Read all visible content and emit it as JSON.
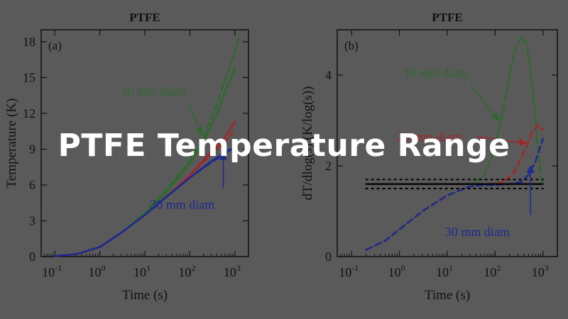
{
  "overlay": {
    "title": "PTFE Temperature Range"
  },
  "colors": {
    "background": "#5a5a5a",
    "axis": "#111111",
    "green": "#2e6a2e",
    "red": "#a02828",
    "blue": "#1e2a8c",
    "black": "#000000"
  },
  "chart_data": [
    {
      "type": "line",
      "panel_label": "(a)",
      "title": "PTFE",
      "xlabel": "Time (s)",
      "ylabel": "Temperature (K)",
      "xscale": "log",
      "xlim": [
        0.05,
        2000
      ],
      "ylim": [
        0,
        19
      ],
      "xticks": [
        0.1,
        1,
        10,
        100,
        1000
      ],
      "xtick_labels": [
        "10-1",
        "100",
        "101",
        "102",
        "103"
      ],
      "yticks": [
        0,
        3,
        6,
        9,
        12,
        15,
        18
      ],
      "ytick_labels": [
        "0",
        "3",
        "6",
        "9",
        "12",
        "15",
        "18"
      ],
      "series": [
        {
          "name": "10 mm diam",
          "color": "green",
          "style": "solid",
          "x": [
            0.1,
            0.3,
            1,
            3,
            10,
            30,
            100,
            200,
            400,
            700,
            1000
          ],
          "y": [
            0.05,
            0.2,
            0.8,
            2.0,
            3.6,
            5.4,
            7.8,
            9.6,
            12.0,
            14.4,
            15.8
          ]
        },
        {
          "name": "",
          "color": "green",
          "style": "dashed",
          "x": [
            0.1,
            0.3,
            1,
            3,
            10,
            30,
            100,
            200,
            400,
            700,
            1000,
            1300
          ],
          "y": [
            0.05,
            0.2,
            0.8,
            2.0,
            3.7,
            5.6,
            8.0,
            10.0,
            12.8,
            15.5,
            17.2,
            18.6
          ]
        },
        {
          "name": "",
          "color": "red",
          "style": "solid",
          "x": [
            0.1,
            0.3,
            1,
            3,
            10,
            30,
            100,
            300,
            600,
            1000
          ],
          "y": [
            0.05,
            0.2,
            0.8,
            2.0,
            3.5,
            5.0,
            6.8,
            8.8,
            10.0,
            11.3
          ]
        },
        {
          "name": "",
          "color": "red",
          "style": "dashed",
          "x": [
            0.1,
            0.3,
            1,
            3,
            10,
            30,
            100,
            300,
            600,
            900
          ],
          "y": [
            0.05,
            0.2,
            0.8,
            2.0,
            3.5,
            5.0,
            6.8,
            8.6,
            9.6,
            10.4
          ]
        },
        {
          "name": "30 mm diam",
          "color": "blue",
          "style": "solid",
          "x": [
            0.1,
            0.3,
            1,
            3,
            10,
            30,
            100,
            300,
            600,
            800
          ],
          "y": [
            0.05,
            0.2,
            0.8,
            2.0,
            3.5,
            5.0,
            6.6,
            8.0,
            8.7,
            9.0
          ]
        },
        {
          "name": "",
          "color": "blue",
          "style": "dashed",
          "x": [
            0.1,
            0.3,
            1,
            3,
            10,
            30,
            100,
            300,
            600,
            800
          ],
          "y": [
            0.05,
            0.2,
            0.8,
            2.0,
            3.5,
            5.0,
            6.6,
            7.9,
            8.6,
            8.9
          ]
        }
      ],
      "annotations": [
        {
          "text": "10 mm diam",
          "color": "green",
          "text_at": [
            3,
            13.5
          ],
          "arrow_to": [
            180,
            10.2
          ]
        },
        {
          "text": "30 mm diam",
          "color": "blue",
          "text_at": [
            13,
            4.0
          ],
          "arrow_to": [
            550,
            8.7
          ]
        }
      ]
    },
    {
      "type": "line",
      "panel_label": "(b)",
      "title": "PTFE",
      "xlabel": "Time (s)",
      "ylabel": "dT/dlog(s) (K/log(s))",
      "xscale": "log",
      "xlim": [
        0.05,
        2000
      ],
      "ylim": [
        0,
        5
      ],
      "xticks": [
        0.1,
        1,
        10,
        100,
        1000
      ],
      "xtick_labels": [
        "10-1",
        "100",
        "101",
        "102",
        "103"
      ],
      "yticks": [
        0,
        2,
        4
      ],
      "ytick_labels": [
        "0",
        "2",
        "4"
      ],
      "series": [
        {
          "name": "10 mm diam",
          "color": "green",
          "style": "dashed",
          "x": [
            0.2,
            0.5,
            1,
            3,
            10,
            30,
            60,
            100,
            150,
            250,
            350,
            450,
            600,
            750,
            900,
            1000
          ],
          "y": [
            0.15,
            0.35,
            0.6,
            1.0,
            1.35,
            1.55,
            1.8,
            2.4,
            3.3,
            4.5,
            4.85,
            4.7,
            3.8,
            2.6,
            1.8,
            1.6
          ]
        },
        {
          "name": "20 mm diam",
          "color": "red",
          "style": "dashed",
          "x": [
            0.2,
            0.5,
            1,
            3,
            10,
            30,
            60,
            100,
            150,
            250,
            400,
            600,
            800,
            1000
          ],
          "y": [
            0.15,
            0.35,
            0.6,
            1.0,
            1.35,
            1.55,
            1.6,
            1.6,
            1.65,
            1.85,
            2.3,
            2.75,
            2.9,
            2.8
          ]
        },
        {
          "name": "30 mm diam",
          "color": "blue",
          "style": "dashed",
          "x": [
            0.2,
            0.5,
            1,
            3,
            10,
            30,
            60,
            100,
            200,
            350,
            500,
            700,
            900,
            1000
          ],
          "y": [
            0.15,
            0.35,
            0.6,
            1.0,
            1.35,
            1.55,
            1.58,
            1.58,
            1.6,
            1.65,
            1.8,
            2.1,
            2.45,
            2.6
          ]
        },
        {
          "name": "",
          "color": "black",
          "style": "solid",
          "x": [
            0.2,
            1000
          ],
          "y": [
            1.6,
            1.6
          ]
        },
        {
          "name": "",
          "color": "black",
          "style": "dotted",
          "x": [
            0.2,
            1000
          ],
          "y": [
            1.7,
            1.7
          ]
        },
        {
          "name": "",
          "color": "black",
          "style": "dotted",
          "x": [
            0.2,
            1000
          ],
          "y": [
            1.5,
            1.5
          ]
        }
      ],
      "annotations": [
        {
          "text": "10 mm diam",
          "color": "green",
          "text_at": [
            1.2,
            3.95
          ],
          "arrow_to": [
            120,
            3.0
          ]
        },
        {
          "text": "20 mm diam",
          "color": "red",
          "text_at": [
            0.9,
            2.55
          ],
          "arrow_to": [
            450,
            2.5
          ]
        },
        {
          "text": "30 mm diam",
          "color": "blue",
          "text_at": [
            9,
            0.45
          ],
          "arrow_to": [
            550,
            2.0
          ]
        }
      ]
    }
  ]
}
